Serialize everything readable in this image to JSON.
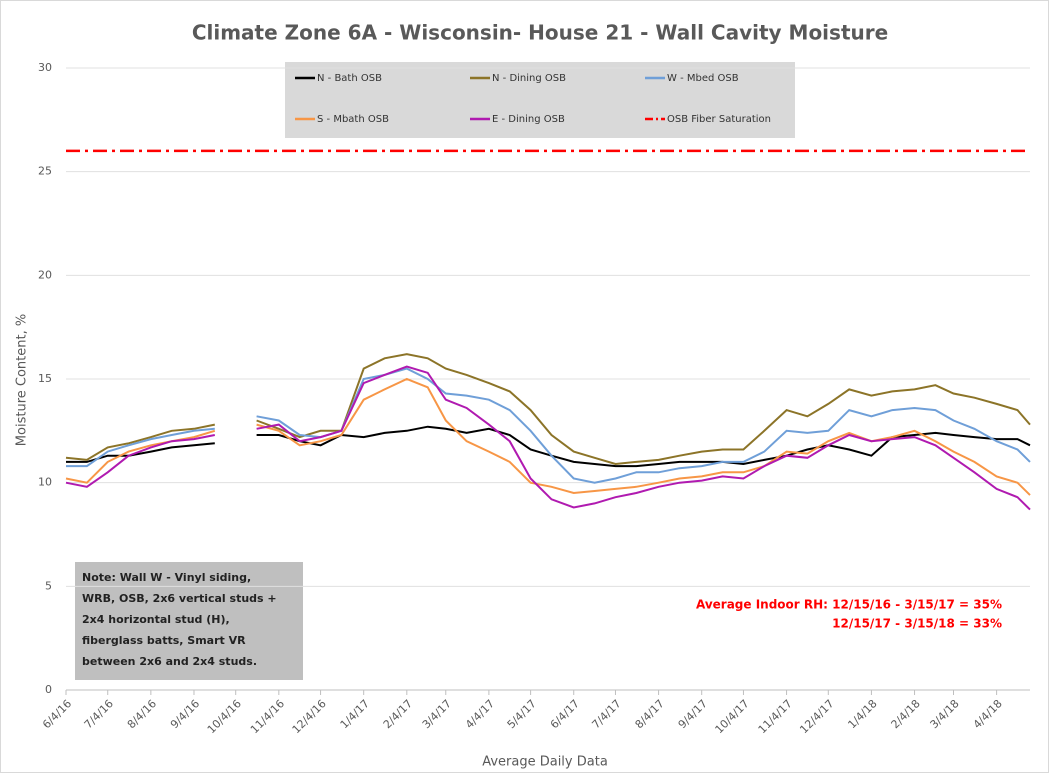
{
  "chart_data": {
    "type": "line",
    "title": "Climate Zone 6A - Wisconsin- House 21 - Wall Cavity Moisture",
    "x_label": "Average Daily Data",
    "y_label": "Moisture Content, %",
    "x": [
      "6/4/16",
      "6/19/16",
      "7/4/16",
      "7/19/16",
      "8/4/16",
      "8/19/16",
      "9/4/16",
      "9/19/16",
      "10/4/16",
      "10/19/16",
      "11/4/16",
      "11/19/16",
      "12/4/16",
      "12/19/16",
      "1/4/17",
      "1/19/17",
      "2/4/17",
      "2/19/17",
      "3/4/17",
      "3/19/17",
      "4/4/17",
      "4/19/17",
      "5/4/17",
      "5/19/17",
      "6/4/17",
      "6/19/17",
      "7/4/17",
      "7/19/17",
      "8/4/17",
      "8/19/17",
      "9/4/17",
      "9/19/17",
      "10/4/17",
      "10/19/17",
      "11/4/17",
      "11/19/17",
      "12/4/17",
      "12/19/17",
      "1/4/18",
      "1/19/18",
      "2/4/18",
      "2/19/18",
      "3/4/18",
      "3/19/18",
      "4/4/18",
      "4/19/18",
      "4/28/18"
    ],
    "series": [
      {
        "name": "N - Bath OSB",
        "color": "#000000",
        "values": [
          11,
          11,
          11.3,
          11.3,
          11.5,
          11.7,
          11.8,
          11.9,
          null,
          12.3,
          12.3,
          12.0,
          11.8,
          12.3,
          12.2,
          12.4,
          12.5,
          12.7,
          12.6,
          12.4,
          12.6,
          12.3,
          11.6,
          11.3,
          11.0,
          10.9,
          10.8,
          10.8,
          10.9,
          11.0,
          11.0,
          11.0,
          10.9,
          11.1,
          11.3,
          11.6,
          11.8,
          11.6,
          11.3,
          12.2,
          12.3,
          12.4,
          12.3,
          12.2,
          12.1,
          12.1,
          11.8
        ]
      },
      {
        "name": "N - Dining OSB",
        "color": "#8c7428",
        "values": [
          11.2,
          11.1,
          11.7,
          11.9,
          12.2,
          12.5,
          12.6,
          12.8,
          null,
          13.0,
          12.6,
          12.2,
          12.5,
          12.5,
          15.5,
          16.0,
          16.2,
          16.0,
          15.5,
          15.2,
          14.8,
          14.4,
          13.5,
          12.3,
          11.5,
          11.2,
          10.9,
          11.0,
          11.1,
          11.3,
          11.5,
          11.6,
          11.6,
          12.5,
          13.5,
          13.2,
          13.8,
          14.5,
          14.2,
          14.4,
          14.5,
          14.7,
          14.3,
          14.1,
          13.8,
          13.5,
          12.8
        ]
      },
      {
        "name": "W - Mbed OSB",
        "color": "#6f9fd8",
        "values": [
          10.8,
          10.8,
          11.5,
          11.8,
          12.1,
          12.3,
          12.5,
          12.6,
          null,
          13.2,
          13.0,
          12.3,
          12.2,
          12.5,
          15.0,
          15.2,
          15.5,
          15.0,
          14.3,
          14.2,
          14.0,
          13.5,
          12.5,
          11.3,
          10.2,
          10.0,
          10.2,
          10.5,
          10.5,
          10.7,
          10.8,
          11.0,
          11.0,
          11.5,
          12.5,
          12.4,
          12.5,
          13.5,
          13.2,
          13.5,
          13.6,
          13.5,
          13.0,
          12.6,
          12.0,
          11.6,
          11.0
        ]
      },
      {
        "name": "S - Mbath OSB",
        "color": "#f79646",
        "values": [
          10.2,
          10.0,
          11.0,
          11.5,
          11.8,
          12.0,
          12.2,
          12.5,
          null,
          12.8,
          12.5,
          11.8,
          12.0,
          12.3,
          14.0,
          14.5,
          15.0,
          14.6,
          13.0,
          12.0,
          11.5,
          11.0,
          10.0,
          9.8,
          9.5,
          9.6,
          9.7,
          9.8,
          10.0,
          10.2,
          10.3,
          10.5,
          10.5,
          10.8,
          11.5,
          11.4,
          12.0,
          12.4,
          12.0,
          12.2,
          12.5,
          12.0,
          11.5,
          11.0,
          10.3,
          10.0,
          9.4
        ]
      },
      {
        "name": "E - Dining OSB",
        "color": "#b01ab0",
        "values": [
          10.0,
          9.8,
          10.5,
          11.3,
          11.7,
          12.0,
          12.1,
          12.3,
          null,
          12.6,
          12.8,
          12.0,
          12.2,
          12.5,
          14.8,
          15.2,
          15.6,
          15.3,
          14.0,
          13.6,
          12.8,
          12.0,
          10.2,
          9.2,
          8.8,
          9.0,
          9.3,
          9.5,
          9.8,
          10.0,
          10.1,
          10.3,
          10.2,
          10.8,
          11.3,
          11.2,
          11.8,
          12.3,
          12.0,
          12.1,
          12.2,
          11.8,
          11.2,
          10.5,
          9.7,
          9.3,
          8.7
        ]
      }
    ],
    "hline": {
      "name": "OSB Fiber Saturation",
      "color": "#ff0000",
      "value": 26
    },
    "xlim": [
      "6/4/16",
      "4/28/18"
    ],
    "xticks": [
      "6/4/16",
      "7/4/16",
      "8/4/16",
      "9/4/16",
      "10/4/16",
      "11/4/16",
      "12/4/16",
      "1/4/17",
      "2/4/17",
      "3/4/17",
      "4/4/17",
      "5/4/17",
      "6/4/17",
      "7/4/17",
      "8/4/17",
      "9/4/17",
      "10/4/17",
      "11/4/17",
      "12/4/17",
      "1/4/18",
      "2/4/18",
      "3/4/18",
      "4/4/18"
    ],
    "ylim": [
      0,
      30
    ],
    "yticks": [
      0,
      5,
      10,
      15,
      20,
      25,
      30
    ],
    "grid": true,
    "legend": "top",
    "note": [
      "Note: Wall W - Vinyl siding,",
      "WRB, OSB, 2x6 vertical studs +",
      "2x4 horizontal  stud (H),",
      "fiberglass batts, Smart VR",
      "between 2x6 and 2x4 studs."
    ],
    "annotation": [
      "Average Indoor RH: 12/15/16 - 3/15/17 = 35%",
      "12/15/17 - 3/15/18 = 33%"
    ]
  }
}
